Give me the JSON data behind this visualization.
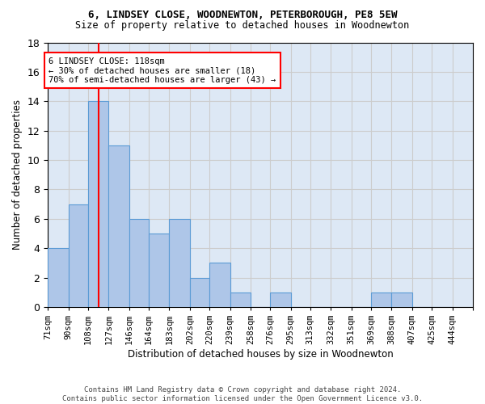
{
  "title1": "6, LINDSEY CLOSE, WOODNEWTON, PETERBOROUGH, PE8 5EW",
  "title2": "Size of property relative to detached houses in Woodnewton",
  "xlabel": "Distribution of detached houses by size in Woodnewton",
  "ylabel": "Number of detached properties",
  "bin_edges": [
    71,
    90,
    108,
    127,
    146,
    164,
    183,
    202,
    220,
    239,
    258,
    276,
    295,
    313,
    332,
    351,
    369,
    388,
    407,
    425,
    444
  ],
  "bar_values": [
    4,
    7,
    14,
    11,
    6,
    5,
    6,
    2,
    3,
    1,
    0,
    1,
    0,
    0,
    0,
    0,
    1,
    1,
    0,
    0
  ],
  "bar_color": "#aec6e8",
  "bar_edgecolor": "#5b9bd5",
  "grid_color": "#cccccc",
  "bg_color": "#dde8f5",
  "red_line_x": 118,
  "annotation_text": "6 LINDSEY CLOSE: 118sqm\n← 30% of detached houses are smaller (18)\n70% of semi-detached houses are larger (43) →",
  "annotation_box_color": "white",
  "annotation_box_edgecolor": "red",
  "footer_text": "Contains HM Land Registry data © Crown copyright and database right 2024.\nContains public sector information licensed under the Open Government Licence v3.0.",
  "ylim": [
    0,
    18
  ],
  "yticks": [
    0,
    2,
    4,
    6,
    8,
    10,
    12,
    14,
    16,
    18
  ],
  "tick_labels": [
    "71sqm",
    "90sqm",
    "108sqm",
    "127sqm",
    "146sqm",
    "164sqm",
    "183sqm",
    "202sqm",
    "220sqm",
    "239sqm",
    "258sqm",
    "276sqm",
    "295sqm",
    "313sqm",
    "332sqm",
    "351sqm",
    "369sqm",
    "388sqm",
    "407sqm",
    "425sqm",
    "444sqm"
  ]
}
